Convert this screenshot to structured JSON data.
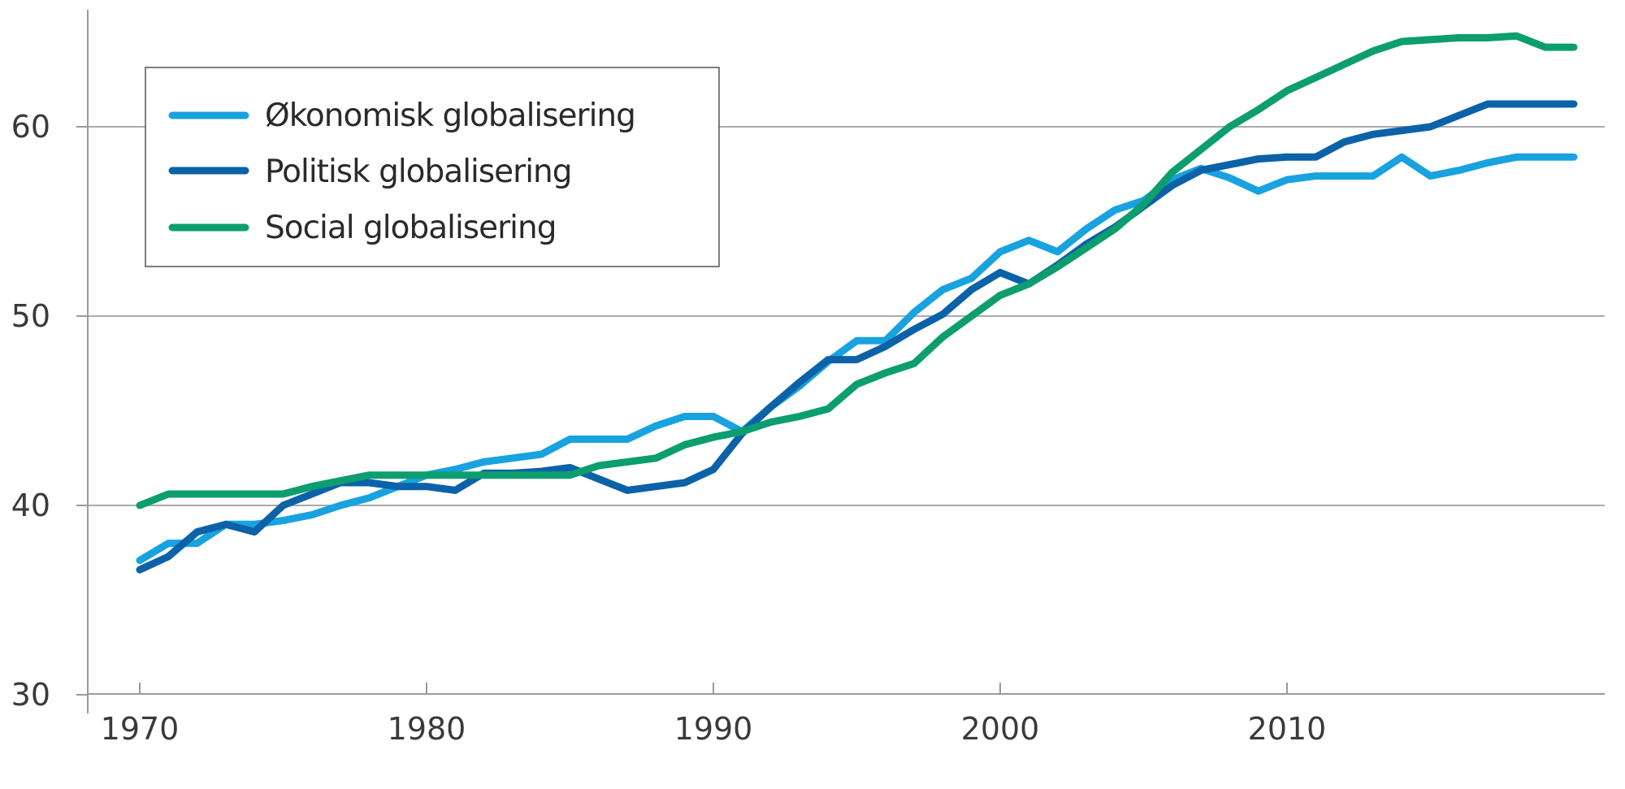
{
  "chart_data": {
    "type": "line",
    "title": "",
    "xlabel": "",
    "ylabel": "",
    "xlim": [
      1968,
      2021
    ],
    "ylim": [
      30,
      65
    ],
    "x_ticks": [
      "1970",
      "1980",
      "1990",
      "2000",
      "2010"
    ],
    "y_ticks": [
      "30",
      "40",
      "50",
      "60"
    ],
    "gridlines_y": [
      40,
      50,
      60
    ],
    "legend_position": "top-left",
    "colors": {
      "okonomisk": "#19a2e0",
      "politisk": "#0c62a8",
      "social": "#0c9e6e"
    },
    "series": [
      {
        "key": "okonomisk",
        "name": "Økonomisk globalisering",
        "x": [
          1970,
          1971,
          1972,
          1973,
          1974,
          1975,
          1976,
          1977,
          1978,
          1979,
          1980,
          1981,
          1982,
          1983,
          1984,
          1985,
          1986,
          1987,
          1988,
          1989,
          1990,
          1991,
          1992,
          1993,
          1994,
          1995,
          1996,
          1997,
          1998,
          1999,
          2000,
          2001,
          2002,
          2003,
          2004,
          2005,
          2006,
          2007,
          2008,
          2009,
          2010,
          2011,
          2012,
          2013,
          2014,
          2015,
          2016,
          2017,
          2018,
          2019,
          2020
        ],
        "values": [
          37.1,
          38.0,
          38.0,
          39.0,
          39.0,
          39.2,
          39.5,
          40.0,
          40.4,
          41.0,
          41.6,
          41.9,
          42.3,
          42.5,
          42.7,
          43.5,
          43.5,
          43.5,
          44.2,
          44.7,
          44.7,
          43.9,
          45.2,
          46.3,
          47.6,
          48.7,
          48.7,
          50.2,
          51.4,
          52.0,
          53.4,
          54.0,
          53.4,
          54.6,
          55.6,
          56.1,
          57.2,
          57.8,
          57.3,
          56.6,
          57.2,
          57.4,
          57.4,
          57.4,
          58.4,
          57.4,
          57.7,
          58.1,
          58.4,
          58.4,
          58.4
        ]
      },
      {
        "key": "politisk",
        "name": "Politisk globalisering",
        "x": [
          1970,
          1971,
          1972,
          1973,
          1974,
          1975,
          1976,
          1977,
          1978,
          1979,
          1980,
          1981,
          1982,
          1983,
          1984,
          1985,
          1986,
          1987,
          1988,
          1989,
          1990,
          1991,
          1992,
          1993,
          1994,
          1995,
          1996,
          1997,
          1998,
          1999,
          2000,
          2001,
          2002,
          2003,
          2004,
          2005,
          2006,
          2007,
          2008,
          2009,
          2010,
          2011,
          2012,
          2013,
          2014,
          2015,
          2016,
          2017,
          2018,
          2019,
          2020
        ],
        "values": [
          36.6,
          37.3,
          38.6,
          39.0,
          38.6,
          40.0,
          40.6,
          41.2,
          41.2,
          41.0,
          41.0,
          40.8,
          41.7,
          41.7,
          41.8,
          42.0,
          41.4,
          40.8,
          41.0,
          41.2,
          41.9,
          43.8,
          45.2,
          46.5,
          47.7,
          47.7,
          48.4,
          49.3,
          50.1,
          51.4,
          52.3,
          51.7,
          52.7,
          53.8,
          54.7,
          55.8,
          56.9,
          57.7,
          58.0,
          58.3,
          58.4,
          58.4,
          59.2,
          59.6,
          59.8,
          60.0,
          60.6,
          61.2,
          61.2,
          61.2,
          61.2
        ]
      },
      {
        "key": "social",
        "name": "Social globalisering",
        "x": [
          1970,
          1971,
          1972,
          1973,
          1974,
          1975,
          1976,
          1977,
          1978,
          1979,
          1980,
          1981,
          1982,
          1983,
          1984,
          1985,
          1986,
          1987,
          1988,
          1989,
          1990,
          1991,
          1992,
          1993,
          1994,
          1995,
          1996,
          1997,
          1998,
          1999,
          2000,
          2001,
          2002,
          2003,
          2004,
          2005,
          2006,
          2007,
          2008,
          2009,
          2010,
          2011,
          2012,
          2013,
          2014,
          2015,
          2016,
          2017,
          2018,
          2019,
          2020
        ],
        "values": [
          40.0,
          40.6,
          40.6,
          40.6,
          40.6,
          40.6,
          41.0,
          41.3,
          41.6,
          41.6,
          41.6,
          41.6,
          41.6,
          41.6,
          41.6,
          41.6,
          42.1,
          42.3,
          42.5,
          43.2,
          43.6,
          43.9,
          44.4,
          44.7,
          45.1,
          46.4,
          47.0,
          47.5,
          48.9,
          50.0,
          51.1,
          51.7,
          52.6,
          53.6,
          54.6,
          55.9,
          57.6,
          58.8,
          60.0,
          60.9,
          61.9,
          62.6,
          63.3,
          64.0,
          64.5,
          64.6,
          64.7,
          64.7,
          64.8,
          64.2,
          64.2
        ]
      }
    ]
  }
}
